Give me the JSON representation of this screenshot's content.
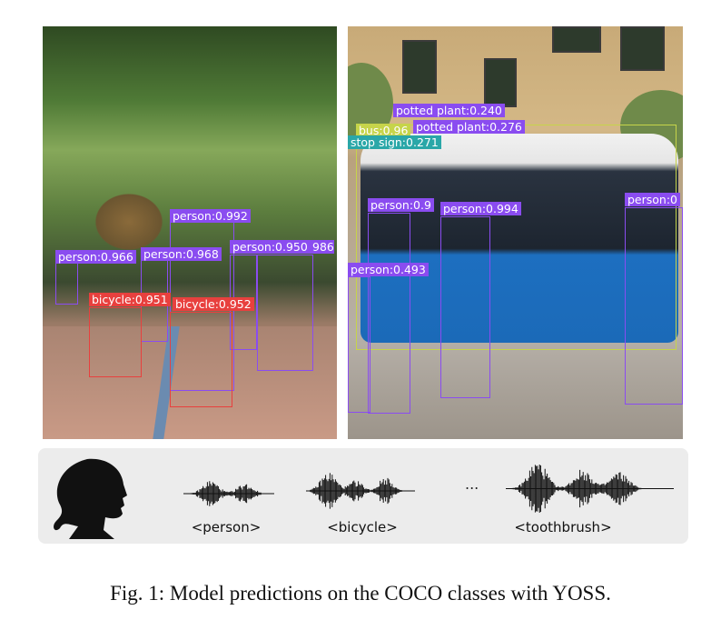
{
  "figure": {
    "caption": "Fig. 1: Model predictions on the COCO classes with YOSS.",
    "left_detections": [
      {
        "label": "person:0.992",
        "color": "#8a4cf0"
      },
      {
        "label": "person:0.966",
        "color": "#8a4cf0"
      },
      {
        "label": "person:0.968",
        "color": "#8a4cf0"
      },
      {
        "label": "person:0.950",
        "color": "#8a4cf0"
      },
      {
        "label": "986",
        "color": "#8a4cf0"
      },
      {
        "label": "bicycle:0.951",
        "color": "#e8403e"
      },
      {
        "label": "bicycle:0.952",
        "color": "#e8403e"
      }
    ],
    "right_detections": [
      {
        "label": "potted plant:0.240",
        "color": "#8a4cf0"
      },
      {
        "label": "bus:0.96",
        "color": "#c6d44a"
      },
      {
        "label": "potted plant:0.276",
        "color": "#8a4cf0"
      },
      {
        "label": "stop sign:0.271",
        "color": "#2aa7a8"
      },
      {
        "label": "person:0.9",
        "color": "#8a4cf0"
      },
      {
        "label": "person:0.994",
        "color": "#8a4cf0"
      },
      {
        "label": "person:0.493",
        "color": "#8a4cf0"
      },
      {
        "label": "person:0",
        "color": "#8a4cf0"
      }
    ],
    "audio": {
      "tokens": [
        "<person>",
        "<bicycle>",
        "<toothbrush>"
      ],
      "ellipsis": "..."
    }
  }
}
